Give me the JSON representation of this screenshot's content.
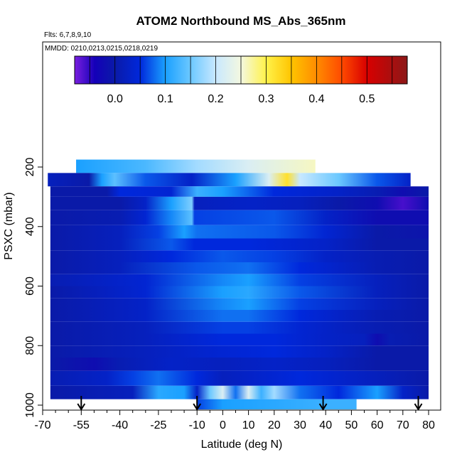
{
  "chart_data": {
    "type": "heatmap",
    "title": "ATOM2 Northbound MS_Abs_365nm",
    "flights_note": "Flts: 6,7,8,9,10",
    "dates_note": "MMDD: 0210,0213,0215,0218,0219",
    "xlabel": "Latitude (deg N)",
    "ylabel": "PSXC (mbar)",
    "xlim": [
      -70,
      85
    ],
    "ylim": [
      1000,
      0
    ],
    "x_ticks": [
      -70,
      -55,
      -40,
      -25,
      -10,
      0,
      10,
      20,
      30,
      40,
      50,
      60,
      70,
      80
    ],
    "x_minor_ticks": [
      -65,
      -60,
      -50,
      -45,
      -35,
      -30,
      -20,
      -15,
      -5,
      5,
      15,
      25,
      35,
      45,
      55,
      65,
      75,
      85
    ],
    "y_ticks": [
      200,
      400,
      600,
      800,
      1000
    ],
    "colorbar": {
      "ticks": [
        0.0,
        0.1,
        0.2,
        0.3,
        0.4,
        0.5
      ],
      "tick_labels": [
        "0.0",
        "0.1",
        "0.2",
        "0.3",
        "0.4",
        "0.5"
      ],
      "range": [
        -0.08,
        0.58
      ],
      "colormap": [
        [
          -0.08,
          "#7a1fe0"
        ],
        [
          -0.04,
          "#1400b8"
        ],
        [
          0.0,
          "#0a1aa8"
        ],
        [
          0.05,
          "#0028dc"
        ],
        [
          0.1,
          "#1aa0ff"
        ],
        [
          0.15,
          "#6cc8ff"
        ],
        [
          0.2,
          "#c8e8ff"
        ],
        [
          0.25,
          "#f4f8e0"
        ],
        [
          0.3,
          "#fff24a"
        ],
        [
          0.35,
          "#ffc400"
        ],
        [
          0.4,
          "#ff8c00"
        ],
        [
          0.45,
          "#ff4a00"
        ],
        [
          0.5,
          "#d80000"
        ],
        [
          0.58,
          "#8c1818"
        ]
      ]
    },
    "bands": [
      {
        "p_top": 175,
        "p_bot": 220,
        "lat_min": -57,
        "lat_max": 36,
        "knots": [
          [
            -57,
            0.1
          ],
          [
            -30,
            0.13
          ],
          [
            -10,
            0.18
          ],
          [
            10,
            0.22
          ],
          [
            36,
            0.26
          ]
        ]
      },
      {
        "p_top": 220,
        "p_bot": 265,
        "lat_min": -68,
        "lat_max": 73,
        "knots": [
          [
            -68,
            0.02
          ],
          [
            -52,
            0.0
          ],
          [
            -47,
            0.1
          ],
          [
            -42,
            0.14
          ],
          [
            -30,
            0.07
          ],
          [
            -12,
            0.03
          ],
          [
            5,
            0.1
          ],
          [
            18,
            0.22
          ],
          [
            25,
            0.32
          ],
          [
            30,
            0.2
          ],
          [
            45,
            0.15
          ],
          [
            60,
            0.07
          ],
          [
            73,
            0.03
          ]
        ]
      },
      {
        "p_top": 265,
        "p_bot": 300,
        "lat_min": -67,
        "lat_max": 80,
        "knots": [
          [
            -67,
            0.0
          ],
          [
            -45,
            0.0
          ],
          [
            -40,
            0.05
          ],
          [
            -20,
            0.04
          ],
          [
            -10,
            0.12
          ],
          [
            0,
            0.1
          ],
          [
            20,
            0.05
          ],
          [
            45,
            0.03
          ],
          [
            60,
            0.01
          ],
          [
            70,
            -0.02
          ],
          [
            80,
            0.0
          ]
        ]
      },
      {
        "p_top": 300,
        "p_bot": 345,
        "lat_min": -67,
        "lat_max": 80,
        "knots": [
          [
            -67,
            0.0
          ],
          [
            -40,
            0.0
          ],
          [
            -30,
            0.03
          ],
          [
            -20,
            0.1
          ],
          [
            -12,
            0.16
          ],
          [
            -11,
            0.02
          ],
          [
            10,
            0.03
          ],
          [
            30,
            0.02
          ],
          [
            45,
            0.0
          ],
          [
            60,
            -0.02
          ],
          [
            70,
            -0.06
          ],
          [
            80,
            -0.02
          ]
        ]
      },
      {
        "p_top": 345,
        "p_bot": 395,
        "lat_min": -67,
        "lat_max": 80,
        "knots": [
          [
            -67,
            0.0
          ],
          [
            -40,
            0.01
          ],
          [
            -30,
            0.04
          ],
          [
            -20,
            0.09
          ],
          [
            -12,
            0.14
          ],
          [
            -11,
            0.06
          ],
          [
            20,
            0.07
          ],
          [
            40,
            0.03
          ],
          [
            60,
            -0.02
          ],
          [
            80,
            -0.02
          ]
        ]
      },
      {
        "p_top": 395,
        "p_bot": 440,
        "lat_min": -67,
        "lat_max": 80,
        "knots": [
          [
            -67,
            0.0
          ],
          [
            -40,
            0.02
          ],
          [
            -25,
            0.06
          ],
          [
            -15,
            0.1
          ],
          [
            -10,
            0.08
          ],
          [
            20,
            0.07
          ],
          [
            40,
            0.04
          ],
          [
            60,
            0.0
          ],
          [
            80,
            -0.01
          ]
        ]
      },
      {
        "p_top": 440,
        "p_bot": 480,
        "lat_min": -67,
        "lat_max": 80,
        "knots": [
          [
            -67,
            0.0
          ],
          [
            -40,
            0.02
          ],
          [
            -20,
            0.07
          ],
          [
            -11,
            0.05
          ],
          [
            10,
            0.05
          ],
          [
            40,
            0.03
          ],
          [
            60,
            0.0
          ],
          [
            80,
            0.0
          ]
        ]
      },
      {
        "p_top": 480,
        "p_bot": 520,
        "lat_min": -67,
        "lat_max": 80,
        "knots": [
          [
            -67,
            0.0
          ],
          [
            -40,
            0.02
          ],
          [
            -20,
            0.05
          ],
          [
            0,
            0.07
          ],
          [
            20,
            0.06
          ],
          [
            40,
            0.03
          ],
          [
            60,
            0.01
          ],
          [
            80,
            0.0
          ]
        ]
      },
      {
        "p_top": 520,
        "p_bot": 560,
        "lat_min": -67,
        "lat_max": 80,
        "knots": [
          [
            -67,
            0.0
          ],
          [
            -40,
            0.02
          ],
          [
            -10,
            0.07
          ],
          [
            10,
            0.08
          ],
          [
            30,
            0.05
          ],
          [
            60,
            0.01
          ],
          [
            80,
            0.0
          ]
        ]
      },
      {
        "p_top": 560,
        "p_bot": 600,
        "lat_min": -67,
        "lat_max": 80,
        "knots": [
          [
            -67,
            0.01
          ],
          [
            -30,
            0.04
          ],
          [
            0,
            0.09
          ],
          [
            10,
            0.1
          ],
          [
            30,
            0.06
          ],
          [
            60,
            0.02
          ],
          [
            80,
            0.0
          ]
        ]
      },
      {
        "p_top": 600,
        "p_bot": 640,
        "lat_min": -67,
        "lat_max": 80,
        "knots": [
          [
            -67,
            0.0
          ],
          [
            -30,
            0.04
          ],
          [
            0,
            0.1
          ],
          [
            10,
            0.11
          ],
          [
            30,
            0.07
          ],
          [
            60,
            0.02
          ],
          [
            80,
            0.0
          ]
        ]
      },
      {
        "p_top": 640,
        "p_bot": 680,
        "lat_min": -67,
        "lat_max": 80,
        "knots": [
          [
            -67,
            0.0
          ],
          [
            -30,
            0.03
          ],
          [
            0,
            0.09
          ],
          [
            10,
            0.1
          ],
          [
            30,
            0.06
          ],
          [
            60,
            0.02
          ],
          [
            80,
            0.0
          ]
        ]
      },
      {
        "p_top": 680,
        "p_bot": 720,
        "lat_min": -67,
        "lat_max": 80,
        "knots": [
          [
            -67,
            0.0
          ],
          [
            -30,
            0.03
          ],
          [
            0,
            0.08
          ],
          [
            10,
            0.08
          ],
          [
            30,
            0.05
          ],
          [
            60,
            0.01
          ],
          [
            80,
            0.0
          ]
        ]
      },
      {
        "p_top": 720,
        "p_bot": 760,
        "lat_min": -67,
        "lat_max": 80,
        "knots": [
          [
            -67,
            0.0
          ],
          [
            -30,
            0.02
          ],
          [
            0,
            0.06
          ],
          [
            10,
            0.06
          ],
          [
            30,
            0.04
          ],
          [
            60,
            0.01
          ],
          [
            80,
            0.0
          ]
        ]
      },
      {
        "p_top": 760,
        "p_bot": 800,
        "lat_min": -67,
        "lat_max": 80,
        "knots": [
          [
            -67,
            0.0
          ],
          [
            -30,
            0.02
          ],
          [
            0,
            0.05
          ],
          [
            20,
            0.05
          ],
          [
            40,
            0.03
          ],
          [
            55,
            0.02
          ],
          [
            60,
            -0.02
          ],
          [
            65,
            0.01
          ],
          [
            80,
            0.0
          ]
        ]
      },
      {
        "p_top": 800,
        "p_bot": 840,
        "lat_min": -67,
        "lat_max": 80,
        "knots": [
          [
            -67,
            0.0
          ],
          [
            -30,
            0.02
          ],
          [
            0,
            0.04
          ],
          [
            20,
            0.05
          ],
          [
            40,
            0.03
          ],
          [
            60,
            0.0
          ],
          [
            80,
            0.0
          ]
        ]
      },
      {
        "p_top": 840,
        "p_bot": 885,
        "lat_min": -67,
        "lat_max": 80,
        "knots": [
          [
            -67,
            0.0
          ],
          [
            -50,
            -0.02
          ],
          [
            -40,
            0.01
          ],
          [
            -20,
            0.03
          ],
          [
            0,
            0.02
          ],
          [
            20,
            0.03
          ],
          [
            40,
            0.02
          ],
          [
            60,
            0.0
          ],
          [
            80,
            0.0
          ]
        ]
      },
      {
        "p_top": 885,
        "p_bot": 935,
        "lat_min": -67,
        "lat_max": 80,
        "knots": [
          [
            -67,
            0.01
          ],
          [
            -45,
            0.03
          ],
          [
            -35,
            0.06
          ],
          [
            -25,
            0.08
          ],
          [
            -10,
            0.05
          ],
          [
            0,
            0.02
          ],
          [
            10,
            0.03
          ],
          [
            30,
            0.05
          ],
          [
            50,
            0.03
          ],
          [
            70,
            0.01
          ],
          [
            80,
            0.0
          ]
        ]
      },
      {
        "p_top": 935,
        "p_bot": 980,
        "lat_min": -67,
        "lat_max": 80,
        "knots": [
          [
            -67,
            0.0
          ],
          [
            -35,
            0.02
          ],
          [
            -25,
            0.11
          ],
          [
            -15,
            0.1
          ],
          [
            -10,
            0.03
          ],
          [
            -5,
            0.15
          ],
          [
            0,
            0.22
          ],
          [
            5,
            0.08
          ],
          [
            10,
            0.22
          ],
          [
            15,
            0.12
          ],
          [
            20,
            0.18
          ],
          [
            30,
            0.08
          ],
          [
            45,
            0.05
          ],
          [
            60,
            0.1
          ],
          [
            70,
            0.03
          ],
          [
            80,
            0.0
          ]
        ]
      },
      {
        "p_top": 980,
        "p_bot": 1030,
        "lat_min": -10,
        "lat_max": 52,
        "knots": [
          [
            -10,
            0.06
          ],
          [
            0,
            0.1
          ],
          [
            20,
            0.11
          ],
          [
            40,
            0.12
          ],
          [
            52,
            0.12
          ]
        ]
      }
    ],
    "arrow_latitudes": [
      -55,
      -10,
      39,
      76
    ]
  }
}
